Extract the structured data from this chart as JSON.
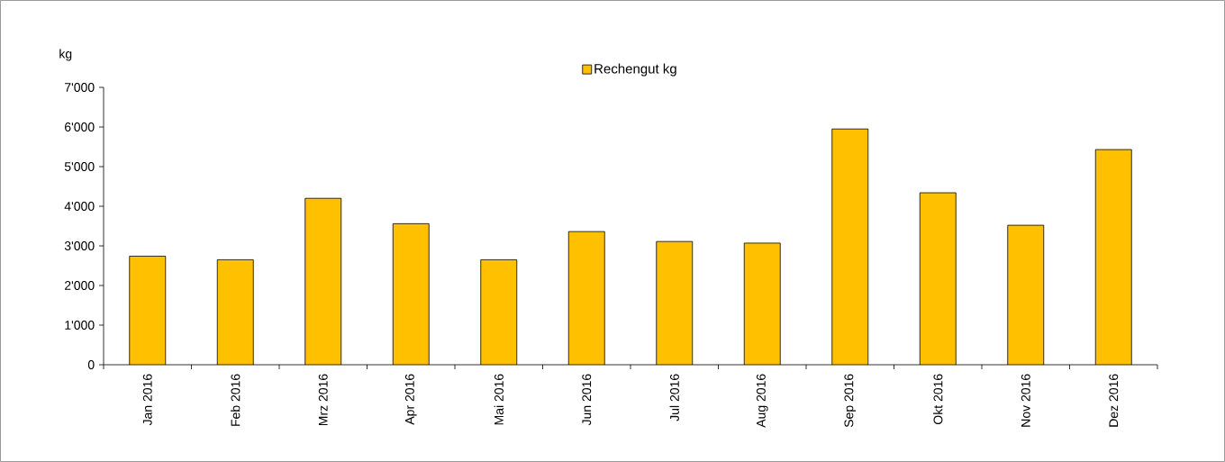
{
  "chart_data": {
    "type": "bar",
    "ylabel": "kg",
    "categories": [
      "Jan 2016",
      "Feb 2016",
      "Mrz 2016",
      "Apr 2016",
      "Mai 2016",
      "Jun 2016",
      "Jul 2016",
      "Aug 2016",
      "Sep 2016",
      "Okt 2016",
      "Nov 2016",
      "Dez 2016"
    ],
    "series": [
      {
        "name": "Rechengut kg",
        "color": "#ffc000",
        "values": [
          2740,
          2650,
          4200,
          3560,
          2650,
          3360,
          3110,
          3070,
          5950,
          4340,
          3520,
          5430
        ]
      }
    ],
    "ylim": [
      0,
      7000
    ],
    "yticks": [
      0,
      {
        "value": 1000,
        "label": "1'000"
      },
      {
        "value": 2000,
        "label": "2'000"
      },
      {
        "value": 3000,
        "label": "3'000"
      },
      {
        "value": 4000,
        "label": "4'000"
      },
      {
        "value": 5000,
        "label": "5'000"
      },
      {
        "value": 6000,
        "label": "6'000"
      },
      {
        "value": 7000,
        "label": "7'000"
      }
    ],
    "legend": "top",
    "grid": false
  }
}
